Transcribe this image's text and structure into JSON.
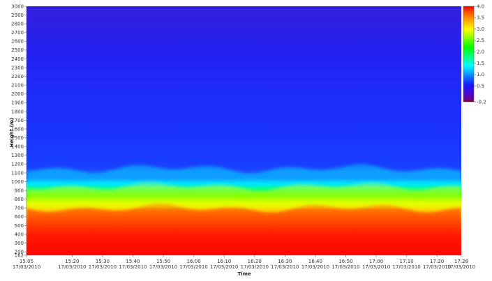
{
  "chart_data": {
    "type": "heatmap",
    "title": "",
    "xlabel": "Time",
    "ylabel": "Height (m)",
    "colorbar_label": "",
    "x_ticks": [
      {
        "time": "15:05",
        "date": "17/03/2010"
      },
      {
        "time": "15:20",
        "date": "17/03/2010"
      },
      {
        "time": "15:30",
        "date": "17/03/2010"
      },
      {
        "time": "15:40",
        "date": "17/03/2010"
      },
      {
        "time": "15:50",
        "date": "17/03/2010"
      },
      {
        "time": "16:00",
        "date": "17/03/2010"
      },
      {
        "time": "16:10",
        "date": "17/03/2010"
      },
      {
        "time": "16:20",
        "date": "17/03/2010"
      },
      {
        "time": "16:30",
        "date": "17/03/2010"
      },
      {
        "time": "16:40",
        "date": "17/03/2010"
      },
      {
        "time": "16:50",
        "date": "17/03/2010"
      },
      {
        "time": "17:00",
        "date": "17/03/2010"
      },
      {
        "time": "17:10",
        "date": "17/03/2010"
      },
      {
        "time": "17:20",
        "date": "17/03/2010"
      },
      {
        "time": "17:28",
        "date": "17/03/2010"
      }
    ],
    "y_ticks": [
      "162",
      "200",
      "300",
      "400",
      "500",
      "600",
      "700",
      "800",
      "900",
      "1000",
      "1100",
      "1200",
      "1300",
      "1400",
      "1500",
      "1600",
      "1700",
      "1800",
      "1900",
      "2000",
      "2100",
      "2200",
      "2300",
      "2400",
      "2500",
      "2600",
      "2700",
      "2800",
      "2900",
      "3000"
    ],
    "y_range": [
      162,
      3000
    ],
    "x_range": [
      "15:05",
      "17:28"
    ],
    "colorbar": {
      "range": [
        -0.2,
        4.0
      ],
      "ticks": [
        "4.0",
        "3.5",
        "3.0",
        "2.5",
        "2.0",
        "1.5",
        "1.0",
        "0.5",
        "-0.2"
      ]
    },
    "layers": [
      {
        "from_height": 162,
        "to_height": 700,
        "value": 3.8
      },
      {
        "from_height": 700,
        "to_height": 950,
        "value": 2.4
      },
      {
        "from_height": 950,
        "to_height": 1150,
        "value": 1.4
      },
      {
        "from_height": 1150,
        "to_height": 3000,
        "value": 0.6
      }
    ],
    "colors": {
      "low": "#6a00a8",
      "blue": "#1818ff",
      "cyan": "#00ffff",
      "green": "#00ff00",
      "yellow": "#ffff00",
      "red": "#ff0000",
      "high": "#8b0000"
    }
  }
}
